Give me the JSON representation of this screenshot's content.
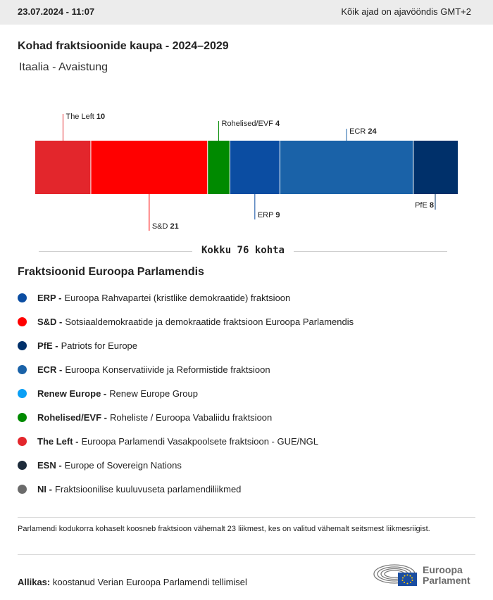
{
  "header": {
    "timestamp": "23.07.2024 - 11:07",
    "timezone_note": "Kõik ajad on ajavööndis GMT+2"
  },
  "title": "Kohad fraktsioonide kaupa - 2024–2029",
  "subtitle": "Itaalia - Avaistung",
  "chart_data": {
    "type": "bar",
    "orientation": "horizontal-stacked",
    "categories": [
      "The Left",
      "S&D",
      "Rohelised/EVF",
      "ERP",
      "ECR",
      "PfE"
    ],
    "values": [
      10,
      21,
      4,
      9,
      24,
      8
    ],
    "colors": [
      "#e3262c",
      "#ff0000",
      "#008a00",
      "#0b4da2",
      "#1a62a8",
      "#00306a"
    ],
    "label_side": [
      "top",
      "bottom",
      "top",
      "bottom",
      "top",
      "bottom"
    ],
    "total": 76
  },
  "total_label": "Kokku 76 kohta",
  "legend": {
    "title": "Fraktsioonid Euroopa Parlamendis",
    "items": [
      {
        "abbr": "ERP -",
        "name": "Euroopa Rahvapartei (kristlike demokraatide) fraktsioon",
        "color": "#0b4da2"
      },
      {
        "abbr": "S&D -",
        "name": "Sotsiaaldemokraatide ja demokraatide fraktsioon Euroopa Parlamendis",
        "color": "#ff0000"
      },
      {
        "abbr": "PfE -",
        "name": "Patriots for Europe",
        "color": "#00306a"
      },
      {
        "abbr": "ECR -",
        "name": "Euroopa Konservatiivide ja Reformistide fraktsioon",
        "color": "#1a62a8"
      },
      {
        "abbr": "Renew Europe -",
        "name": "Renew Europe Group",
        "color": "#0a9ff5"
      },
      {
        "abbr": "Rohelised/EVF -",
        "name": "Roheliste / Euroopa Vabaliidu fraktsioon",
        "color": "#008a00"
      },
      {
        "abbr": "The Left -",
        "name": "Euroopa Parlamendi Vasakpoolsete fraktsioon - GUE/NGL",
        "color": "#e3262c"
      },
      {
        "abbr": "ESN -",
        "name": "Europe of Sovereign Nations",
        "color": "#1d2b3a"
      },
      {
        "abbr": "NI -",
        "name": "Fraktsioonilise kuuluvuseta parlamendiliikmed",
        "color": "#6b6b6b"
      }
    ]
  },
  "note": "Parlamendi kodukorra kohaselt koosneb fraktsioon vähemalt 23 liikmest, kes on valitud vähemalt seitsmest liikmesriigist.",
  "source": {
    "label": "Allikas:",
    "text": "koostanud Verian Euroopa Parlamendi tellimisel"
  },
  "logo": {
    "line1": "Euroopa",
    "line2": "Parlament"
  }
}
